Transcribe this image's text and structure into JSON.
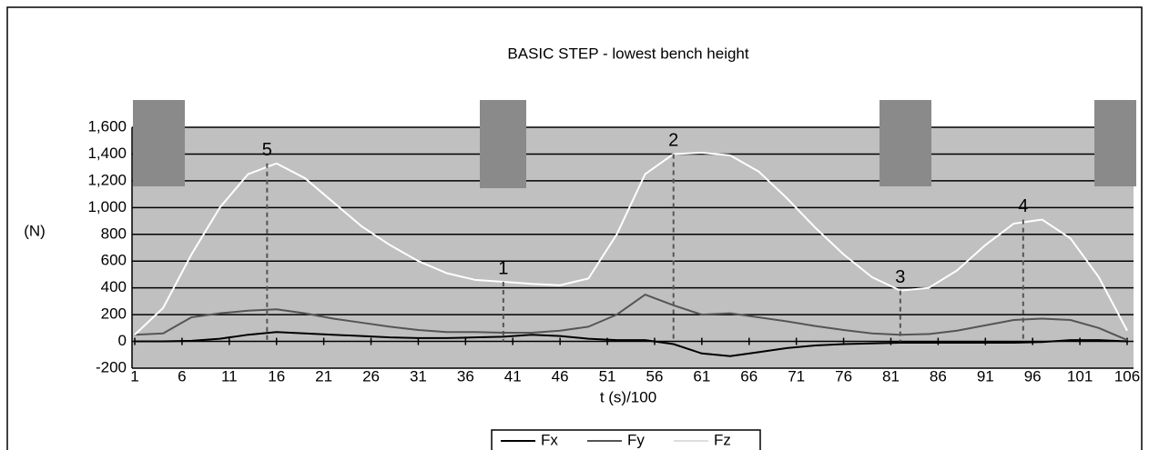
{
  "chart_data": {
    "type": "line",
    "title": "BASIC STEP - lowest bench height",
    "x_label": "t (s)/100",
    "y_label": "(N)",
    "x": [
      1,
      4,
      7,
      10,
      13,
      16,
      19,
      22,
      25,
      28,
      31,
      34,
      37,
      40,
      43,
      46,
      49,
      52,
      55,
      58,
      61,
      64,
      67,
      70,
      73,
      76,
      79,
      82,
      85,
      88,
      91,
      94,
      97,
      100,
      103,
      106
    ],
    "series": [
      {
        "name": "Fx",
        "color": "#000000",
        "values": [
          0,
          0,
          5,
          20,
          50,
          70,
          60,
          50,
          40,
          30,
          25,
          25,
          30,
          35,
          50,
          40,
          20,
          10,
          10,
          -20,
          -90,
          -110,
          -80,
          -50,
          -30,
          -20,
          -15,
          -10,
          -10,
          -10,
          -10,
          -10,
          -5,
          10,
          10,
          0
        ]
      },
      {
        "name": "Fy",
        "color": "#555555",
        "values": [
          50,
          60,
          180,
          210,
          230,
          240,
          210,
          170,
          140,
          110,
          85,
          70,
          70,
          65,
          65,
          80,
          110,
          200,
          350,
          270,
          200,
          210,
          180,
          150,
          115,
          85,
          60,
          50,
          55,
          80,
          120,
          160,
          170,
          160,
          100,
          10
        ]
      },
      {
        "name": "Fz",
        "color": "#ffffff",
        "values": [
          50,
          250,
          650,
          1000,
          1250,
          1330,
          1220,
          1040,
          860,
          720,
          600,
          510,
          460,
          445,
          430,
          420,
          470,
          800,
          1250,
          1400,
          1410,
          1390,
          1270,
          1070,
          850,
          650,
          480,
          380,
          400,
          530,
          720,
          880,
          910,
          770,
          480,
          80
        ]
      }
    ],
    "annotations": [
      {
        "text": "5",
        "x": 15,
        "y": 1330
      },
      {
        "text": "1",
        "x": 40,
        "y": 445
      },
      {
        "text": "2",
        "x": 58,
        "y": 1400
      },
      {
        "text": "3",
        "x": 82,
        "y": 380
      },
      {
        "text": "4",
        "x": 95,
        "y": 910
      }
    ],
    "xlim": [
      1,
      106
    ],
    "xticks": [
      1,
      6,
      11,
      16,
      21,
      26,
      31,
      36,
      41,
      46,
      51,
      56,
      61,
      66,
      71,
      76,
      81,
      86,
      91,
      96,
      101,
      106
    ],
    "ylim": [
      -200,
      1600
    ],
    "yticks": [
      -200,
      0,
      200,
      400,
      600,
      800,
      {
        "value": 1000,
        "label": "1,000"
      },
      {
        "value": 1200,
        "label": "1,200"
      },
      {
        "value": 1400,
        "label": "1,400"
      },
      {
        "value": 1600,
        "label": "1,600"
      }
    ],
    "grid": true,
    "plot_background": "#c0c0c0",
    "legend": "bottom"
  }
}
